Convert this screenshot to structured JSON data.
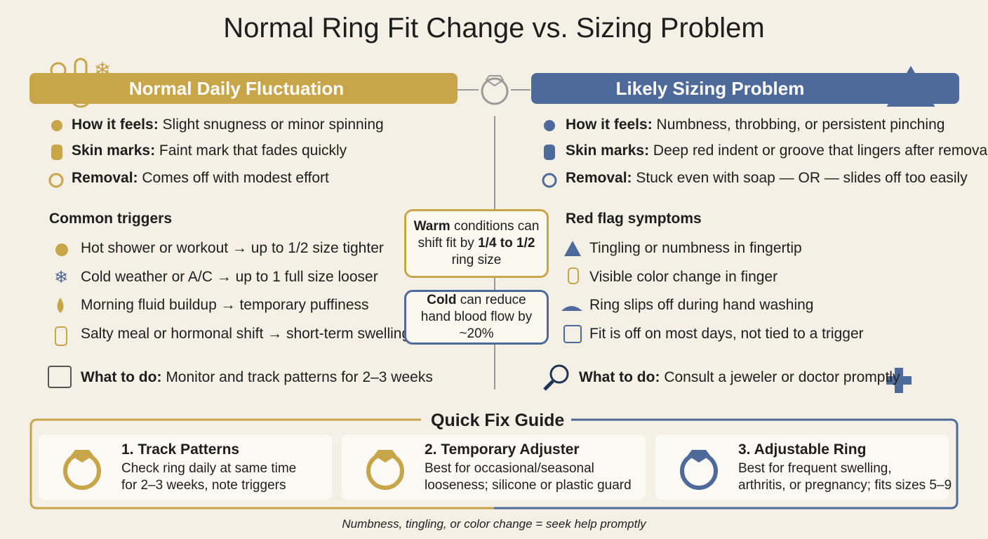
{
  "title": "Normal Ring Fit Change vs. Sizing Problem",
  "left": {
    "heading": "Normal Daily Fluctuation",
    "items": [
      {
        "label": "How it feels:",
        "text": "Slight snugness or minor spinning"
      },
      {
        "label": "Skin marks:",
        "text": "Faint mark that fades quickly"
      },
      {
        "label": "Removal:",
        "text": "Comes off with modest effort"
      }
    ],
    "list_title": "Common triggers",
    "list": [
      "Hot shower or workout → up to 1/2 size tighter",
      "Cold weather or A/C → up to 1 full size looser",
      "Morning fluid buildup → temporary puffiness",
      "Salty meal or hormonal shift → short-term swelling"
    ],
    "todo": {
      "label": "What to do:",
      "text": "Monitor and track patterns for 2–3 weeks"
    }
  },
  "right": {
    "heading": "Likely Sizing Problem",
    "items": [
      {
        "label": "How it feels:",
        "text": "Numbness, throbbing, or persistent pinching"
      },
      {
        "label": "Skin marks:",
        "text": "Deep red indent or groove that lingers after removal"
      },
      {
        "label": "Removal:",
        "text": "Stuck even with soap — OR — slides off too easily"
      }
    ],
    "list_title": "Red flag symptoms",
    "list": [
      "Tingling or numbness in fingertip",
      "Visible color change in finger",
      "Ring slips off during hand washing",
      "Fit is off on most days, not tied to a trigger"
    ],
    "todo": {
      "label": "What to do:",
      "text": "Consult a jeweler or doctor promptly"
    }
  },
  "callouts": [
    {
      "parts": [
        "Warm",
        " conditions can shift fit by ",
        "1/4 to 1/2",
        " ring size"
      ]
    },
    {
      "parts": [
        "Cold",
        " can reduce hand blood flow by ~20%"
      ]
    }
  ],
  "quick_fix": {
    "title": "Quick Fix Guide",
    "cards": [
      {
        "title": "1. Track Patterns",
        "lines": [
          "Check ring daily at same time",
          "for 2–3 weeks, note triggers"
        ]
      },
      {
        "title": "2. Temporary Adjuster",
        "lines": [
          "Best for occasional/seasonal",
          "looseness; silicone or plastic guard"
        ]
      },
      {
        "title": "3. Adjustable Ring",
        "lines": [
          "Best for frequent swelling,",
          "arthritis, or pregnancy; fits sizes 5–9"
        ]
      }
    ],
    "footer": "Numbness, tingling, or color change = seek help promptly"
  }
}
